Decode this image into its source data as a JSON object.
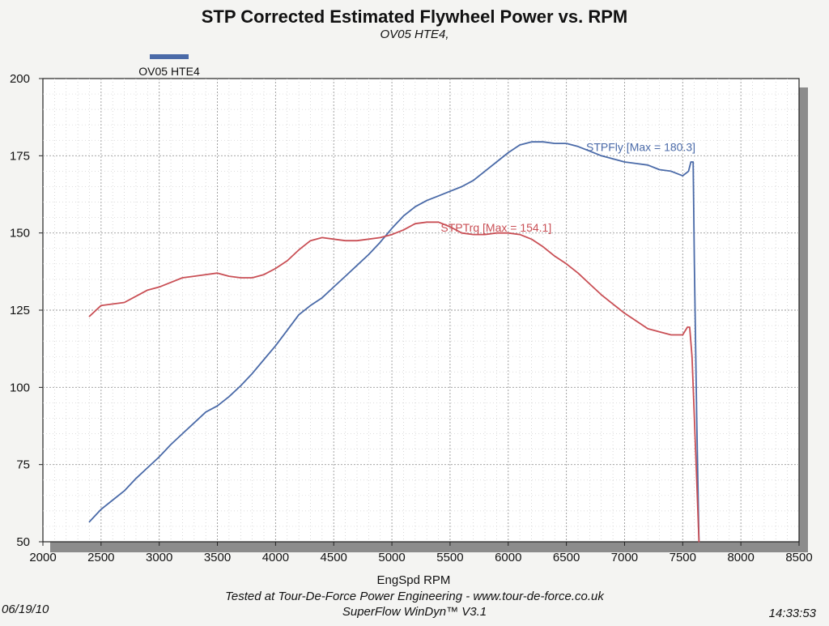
{
  "chart_data": {
    "type": "line",
    "title": "STP Corrected Estimated Flywheel Power vs. RPM",
    "subtitle": "OV05 HTE4,",
    "xlabel": "EngSpd RPM",
    "ylabel": "",
    "xlim": [
      2000,
      8500
    ],
    "ylim": [
      50,
      200
    ],
    "x_ticks": [
      2000,
      2500,
      3000,
      3500,
      4000,
      4500,
      5000,
      5500,
      6000,
      6500,
      7000,
      7500,
      8000,
      8500
    ],
    "y_ticks": [
      50,
      75,
      100,
      125,
      150,
      175,
      200
    ],
    "grid": true,
    "legend": {
      "entries": [
        {
          "name": "OV05 HTE4",
          "color": "#4a6aa8"
        }
      ],
      "placement": "top-left"
    },
    "series": [
      {
        "name": "STPFly",
        "color": "#4a6aa8",
        "x": [
          2400,
          2500,
          2600,
          2700,
          2800,
          2900,
          3000,
          3100,
          3200,
          3300,
          3400,
          3500,
          3600,
          3700,
          3800,
          3900,
          4000,
          4100,
          4200,
          4300,
          4400,
          4500,
          4600,
          4700,
          4800,
          4900,
          5000,
          5100,
          5200,
          5300,
          5400,
          5500,
          5600,
          5700,
          5800,
          5900,
          6000,
          6100,
          6200,
          6300,
          6400,
          6500,
          6600,
          6700,
          6800,
          6900,
          7000,
          7100,
          7200,
          7300,
          7400,
          7500,
          7550,
          7570,
          7590,
          7600,
          7620,
          7640
        ],
        "values": [
          56.5,
          60.5,
          63.5,
          66.5,
          70.5,
          74,
          77.5,
          81.5,
          85,
          88.5,
          92,
          94,
          97,
          100.5,
          104.5,
          109,
          113.5,
          118.5,
          123.5,
          126.5,
          129,
          132.5,
          136,
          139.5,
          143,
          147,
          151.5,
          155.5,
          158.5,
          160.5,
          162,
          163.5,
          165,
          167,
          170,
          173,
          176,
          178.5,
          179.5,
          179.5,
          179,
          179,
          178,
          176.5,
          175,
          174,
          173,
          172.5,
          172,
          170.5,
          170,
          168.5,
          170,
          173,
          173,
          140,
          90,
          48
        ],
        "annotation": "STPFly [Max = 180.3]"
      },
      {
        "name": "STPTrq",
        "color": "#c94f55",
        "x": [
          2400,
          2500,
          2600,
          2700,
          2800,
          2900,
          3000,
          3100,
          3200,
          3300,
          3400,
          3500,
          3600,
          3700,
          3800,
          3900,
          4000,
          4100,
          4200,
          4300,
          4400,
          4500,
          4600,
          4700,
          4800,
          4900,
          5000,
          5100,
          5200,
          5300,
          5400,
          5500,
          5600,
          5700,
          5800,
          5900,
          6000,
          6100,
          6200,
          6300,
          6400,
          6500,
          6600,
          6700,
          6800,
          6900,
          7000,
          7100,
          7200,
          7300,
          7400,
          7500,
          7540,
          7560,
          7580,
          7600,
          7620,
          7640
        ],
        "values": [
          123,
          126.5,
          127,
          127.5,
          129.5,
          131.5,
          132.5,
          134,
          135.5,
          136,
          136.5,
          137,
          136,
          135.5,
          135.5,
          136.5,
          138.5,
          141,
          144.5,
          147.5,
          148.5,
          148,
          147.5,
          147.5,
          148,
          148.5,
          149.5,
          151,
          153,
          153.5,
          153.5,
          152,
          150,
          149.5,
          149.5,
          150,
          150,
          149.5,
          148,
          145.5,
          142.5,
          140,
          137,
          133.5,
          130,
          127,
          124,
          121.5,
          119,
          118,
          117,
          117,
          119.5,
          119.5,
          110,
          90,
          70,
          48
        ],
        "annotation": "STPTrq [Max = 154.1]"
      }
    ]
  },
  "footer": {
    "line1": "Tested at Tour-De-Force Power Engineering - www.tour-de-force.co.uk",
    "line2": "SuperFlow WinDyn™ V3.1",
    "date": "06/19/10",
    "time": "14:33:53"
  }
}
